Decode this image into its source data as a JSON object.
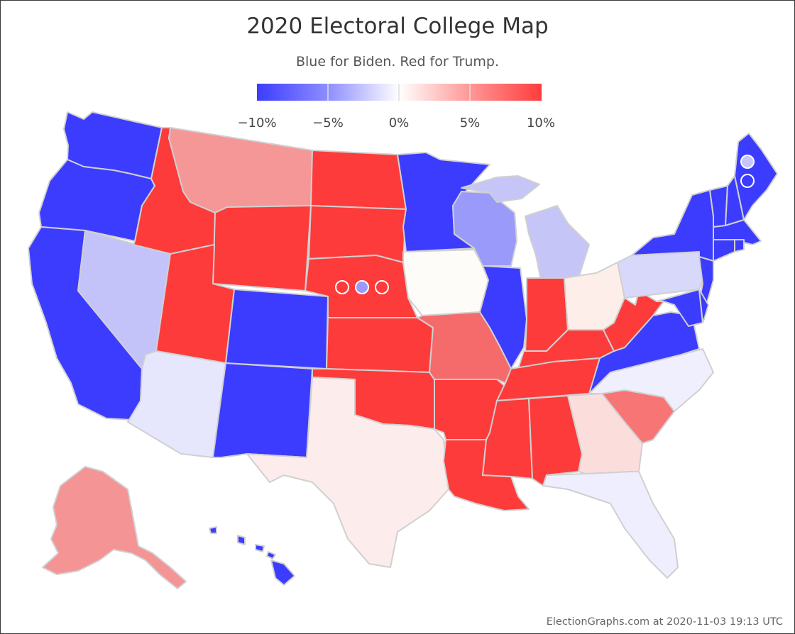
{
  "title": "2020 Electoral College Map",
  "subtitle": "Blue for Biden. Red for Trump.",
  "legend": {
    "ticks": [
      "−10%",
      "−5%",
      "0%",
      "5%",
      "10%"
    ],
    "colors": [
      "#3c3cff",
      "#8e8eff",
      "#ffffff",
      "#ff9696",
      "#ff3c3c"
    ]
  },
  "credit": "ElectionGraphs.com at 2020-11-03 19:13 UTC",
  "palette": {
    "strong_biden": "#3c3cff",
    "lean_biden_wi": "#9a9afa",
    "lean_biden_mi": "#c5c5f8",
    "lean_biden_nv": "#c3c3fa",
    "lean_biden_pa": "#d8d8fb",
    "tilt_biden_az": "#e6e6fd",
    "tilt_biden_nc": "#efeffe",
    "tilt_biden_fl": "#eeeeff",
    "tossup_ia": "#fefcf8",
    "tilt_trump_oh": "#fdeeea",
    "tilt_trump_tx": "#fdecec",
    "tilt_trump_ga": "#fbdedc",
    "lean_trump_sc": "#f87575",
    "lean_trump_mo": "#f56a6a",
    "lean_trump_mt": "#f59797",
    "lean_trump_ak": "#f59494",
    "strong_trump": "#fd3b3b"
  },
  "states": [
    {
      "name": "WA",
      "color": "#3c3cff"
    },
    {
      "name": "OR",
      "color": "#3c3cff"
    },
    {
      "name": "CA",
      "color": "#3c3cff"
    },
    {
      "name": "NV",
      "color": "#c3c3fa"
    },
    {
      "name": "ID",
      "color": "#fd3b3b"
    },
    {
      "name": "MT",
      "color": "#f59797"
    },
    {
      "name": "WY",
      "color": "#fd3b3b"
    },
    {
      "name": "UT",
      "color": "#fd3b3b"
    },
    {
      "name": "AZ",
      "color": "#e6e6fd"
    },
    {
      "name": "CO",
      "color": "#3c3cff"
    },
    {
      "name": "NM",
      "color": "#3c3cff"
    },
    {
      "name": "ND",
      "color": "#fd3b3b"
    },
    {
      "name": "SD",
      "color": "#fd3b3b"
    },
    {
      "name": "NE",
      "color": "#fd3b3b"
    },
    {
      "name": "KS",
      "color": "#fd3b3b"
    },
    {
      "name": "OK",
      "color": "#fd3b3b"
    },
    {
      "name": "TX",
      "color": "#fdecec"
    },
    {
      "name": "MN",
      "color": "#3c3cff"
    },
    {
      "name": "IA",
      "color": "#fefcf8"
    },
    {
      "name": "MO",
      "color": "#f56a6a"
    },
    {
      "name": "AR",
      "color": "#fd3b3b"
    },
    {
      "name": "LA",
      "color": "#fd3b3b"
    },
    {
      "name": "WI",
      "color": "#9a9afa"
    },
    {
      "name": "IL",
      "color": "#3c3cff"
    },
    {
      "name": "MI",
      "color": "#c5c5f8"
    },
    {
      "name": "IN",
      "color": "#fd3b3b"
    },
    {
      "name": "OH",
      "color": "#fdeeea"
    },
    {
      "name": "KY",
      "color": "#fd3b3b"
    },
    {
      "name": "TN",
      "color": "#fd3b3b"
    },
    {
      "name": "MS",
      "color": "#fd3b3b"
    },
    {
      "name": "AL",
      "color": "#fd3b3b"
    },
    {
      "name": "GA",
      "color": "#fbdedc"
    },
    {
      "name": "FL",
      "color": "#eeeeff"
    },
    {
      "name": "SC",
      "color": "#f87575"
    },
    {
      "name": "NC",
      "color": "#efeffe"
    },
    {
      "name": "VA",
      "color": "#3c3cff"
    },
    {
      "name": "WV",
      "color": "#fd3b3b"
    },
    {
      "name": "PA",
      "color": "#d8d8fb"
    },
    {
      "name": "NY",
      "color": "#3c3cff"
    },
    {
      "name": "NJ",
      "color": "#3c3cff"
    },
    {
      "name": "MD",
      "color": "#3c3cff"
    },
    {
      "name": "DE",
      "color": "#3c3cff"
    },
    {
      "name": "VT",
      "color": "#3c3cff"
    },
    {
      "name": "NH",
      "color": "#3c3cff"
    },
    {
      "name": "ME",
      "color": "#3c3cff"
    },
    {
      "name": "MA",
      "color": "#3c3cff"
    },
    {
      "name": "CT",
      "color": "#3c3cff"
    },
    {
      "name": "RI",
      "color": "#3c3cff"
    },
    {
      "name": "AK",
      "color": "#f59494"
    },
    {
      "name": "HI",
      "color": "#3c3cff"
    }
  ],
  "district_markers": {
    "NE": [
      {
        "district": "NE-1",
        "fill": "#fd3b3b"
      },
      {
        "district": "NE-2",
        "fill": "#9a9afa"
      },
      {
        "district": "NE-3",
        "fill": "#fd3b3b"
      }
    ],
    "ME": [
      {
        "district": "ME-1",
        "fill": "#c5c5f8"
      },
      {
        "district": "ME-2",
        "fill": "#3c3cff"
      }
    ]
  }
}
